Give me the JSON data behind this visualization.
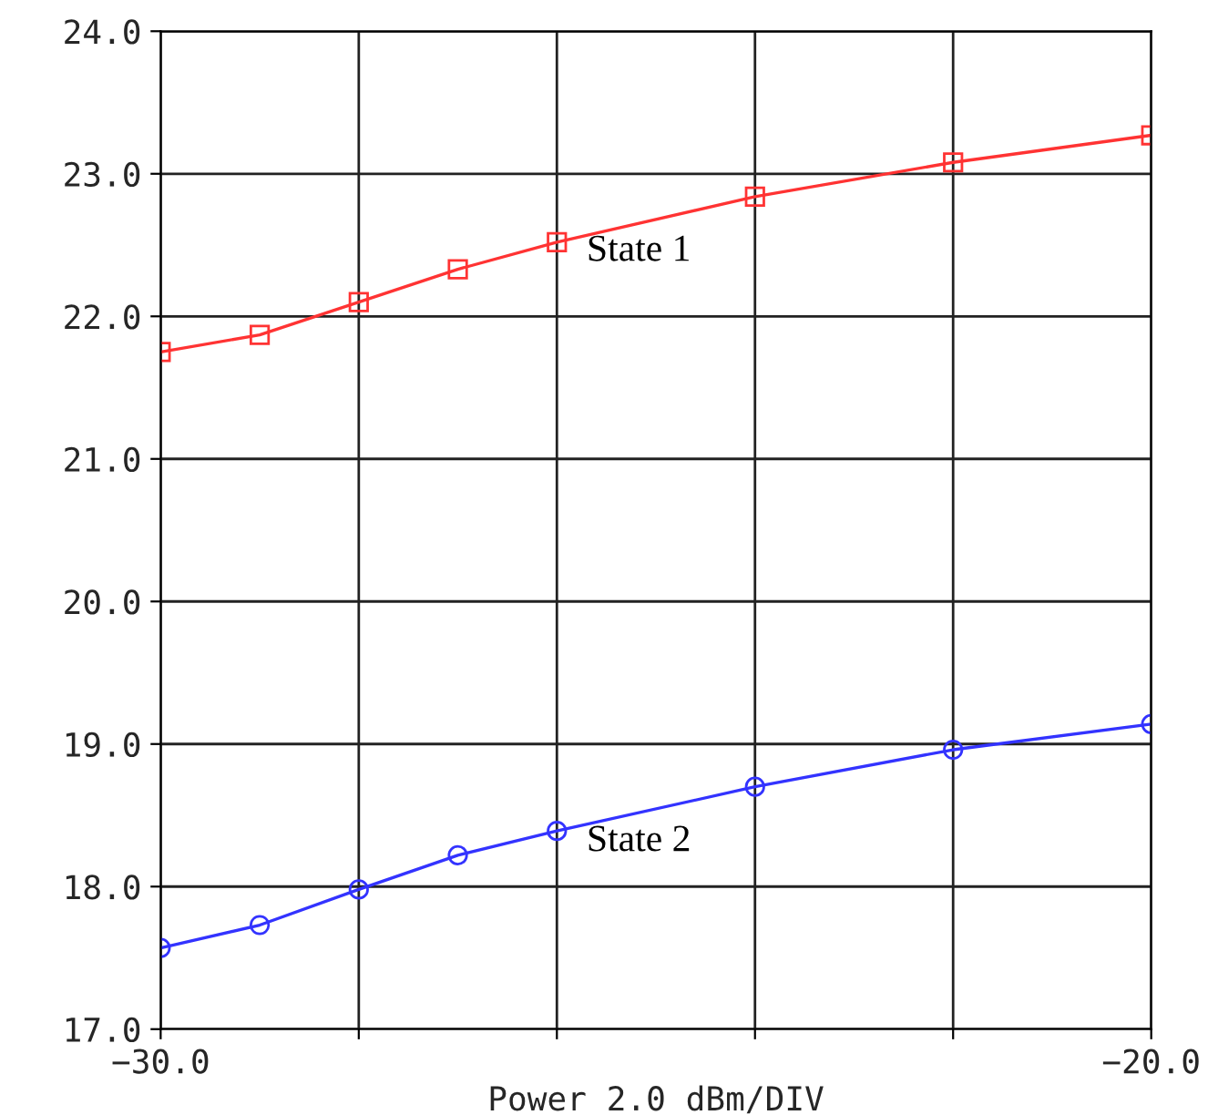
{
  "chart_data": {
    "type": "line",
    "xlabel": "Power 2.0 dBm/DIV",
    "x": [
      -30,
      -29,
      -28,
      -27,
      -26,
      -24,
      -22,
      -20
    ],
    "series": [
      {
        "name": "State 1",
        "color": "#ff3333",
        "marker": "square",
        "values": [
          21.75,
          21.87,
          22.1,
          22.33,
          22.52,
          22.84,
          23.08,
          23.27
        ]
      },
      {
        "name": "State 2",
        "color": "#3333ff",
        "marker": "circle",
        "values": [
          17.57,
          17.73,
          17.98,
          18.22,
          18.39,
          18.7,
          18.96,
          19.14
        ]
      }
    ],
    "xlim": [
      -30,
      -20
    ],
    "xticks": [
      {
        "value": -30,
        "label": "−30.0"
      },
      {
        "value": -28,
        "label": null
      },
      {
        "value": -26,
        "label": null
      },
      {
        "value": -24,
        "label": null
      },
      {
        "value": -22,
        "label": null
      },
      {
        "value": -20,
        "label": "−20.0"
      }
    ],
    "ylim": [
      17,
      24
    ],
    "yticks": [
      {
        "value": 17,
        "label": "17.0"
      },
      {
        "value": 18,
        "label": "18.0"
      },
      {
        "value": 19,
        "label": "19.0"
      },
      {
        "value": 20,
        "label": "20.0"
      },
      {
        "value": 21,
        "label": "21.0"
      },
      {
        "value": 22,
        "label": "22.0"
      },
      {
        "value": 23,
        "label": "23.0"
      },
      {
        "value": 24,
        "label": "24.0"
      }
    ],
    "grid": true,
    "line_style": "solid",
    "legend": false
  }
}
